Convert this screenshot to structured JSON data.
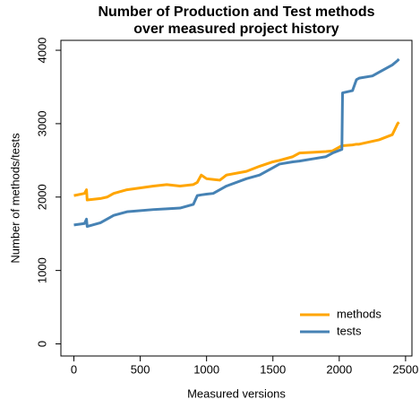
{
  "chart_data": {
    "type": "line",
    "title": [
      "Number of Production and Test methods",
      "over measured project history"
    ],
    "x_label": "Measured versions",
    "y_label": "Number of methods/tests",
    "x": [
      0,
      80,
      95,
      100,
      200,
      250,
      300,
      400,
      600,
      700,
      800,
      900,
      930,
      960,
      1000,
      1050,
      1100,
      1150,
      1300,
      1400,
      1500,
      1550,
      1650,
      1700,
      1800,
      1900,
      1950,
      2020,
      2025,
      2100,
      2130,
      2150,
      2250,
      2300,
      2400,
      2440,
      2450
    ],
    "series": [
      {
        "name": "methods",
        "color": "#FFA500",
        "values": [
          2020,
          2050,
          2100,
          1960,
          1980,
          2000,
          2050,
          2100,
          2150,
          2170,
          2150,
          2170,
          2200,
          2300,
          2250,
          2240,
          2230,
          2300,
          2350,
          2420,
          2480,
          2500,
          2550,
          2600,
          2610,
          2620,
          2630,
          2700,
          2700,
          2710,
          2720,
          2720,
          2760,
          2780,
          2850,
          3000,
          3020
        ]
      },
      {
        "name": "tests",
        "color": "#4682B4",
        "values": [
          1620,
          1640,
          1700,
          1600,
          1650,
          1700,
          1750,
          1800,
          1830,
          1840,
          1850,
          1900,
          2020,
          2030,
          2040,
          2050,
          2100,
          2150,
          2250,
          2300,
          2400,
          2450,
          2480,
          2490,
          2520,
          2550,
          2600,
          2650,
          3420,
          3450,
          3600,
          3620,
          3650,
          3700,
          3800,
          3860,
          3880
        ]
      }
    ],
    "xlim": [
      -98,
      2548
    ],
    "ylim": [
      -165,
      4135
    ],
    "xticks": [
      0,
      500,
      1000,
      1500,
      2000,
      2500
    ],
    "yticks": [
      0,
      1000,
      2000,
      3000,
      4000
    ],
    "legend": "bottom-right"
  }
}
